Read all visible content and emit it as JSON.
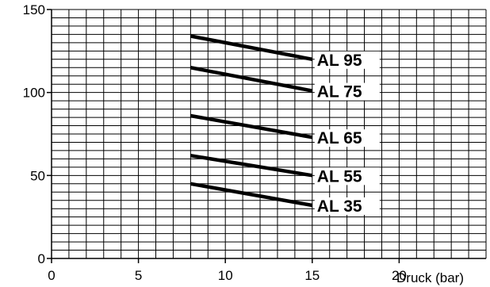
{
  "chart_data": {
    "type": "line",
    "title": "",
    "xlabel": "Druck (bar)",
    "ylabel": "",
    "xlim": [
      0,
      25
    ],
    "ylim": [
      0,
      150
    ],
    "x_ticks": [
      0,
      5,
      10,
      15,
      20
    ],
    "y_ticks": [
      0,
      50,
      100,
      150
    ],
    "x_tick_labels": [
      "0",
      "5",
      "10",
      "15",
      "20"
    ],
    "y_tick_labels": [
      "0",
      "50",
      "100",
      "150"
    ],
    "grid": true,
    "grid_step": {
      "x": 1,
      "y": 5
    },
    "legend": "series labels at right end of each line",
    "series": [
      {
        "name": "AL 95",
        "x": [
          8,
          15
        ],
        "y": [
          134,
          120
        ]
      },
      {
        "name": "AL 75",
        "x": [
          8,
          15
        ],
        "y": [
          115,
          101
        ]
      },
      {
        "name": "AL 65",
        "x": [
          8,
          15
        ],
        "y": [
          86,
          73
        ]
      },
      {
        "name": "AL 55",
        "x": [
          8,
          15
        ],
        "y": [
          62,
          50
        ]
      },
      {
        "name": "AL 35",
        "x": [
          8,
          15
        ],
        "y": [
          45,
          32
        ]
      }
    ]
  }
}
